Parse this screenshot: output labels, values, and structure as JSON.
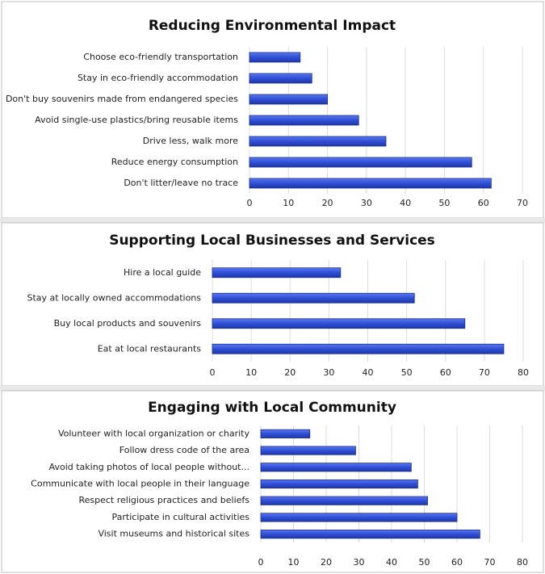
{
  "chart_data": [
    {
      "type": "barh",
      "title": "Reducing Environmental Impact",
      "categories": [
        "Choose eco-friendly transportation",
        "Stay in eco-friendly accommodation",
        "Don't buy souvenirs made from endangered species",
        "Avoid single-use plastics/bring reusable items",
        "Drive less, walk more",
        "Reduce energy consumption",
        "Don't litter/leave no trace"
      ],
      "values": [
        13,
        16,
        20,
        28,
        35,
        57,
        62
      ],
      "color": "#2f4fd6",
      "xlim": [
        0,
        70
      ],
      "xticks": [
        0,
        10,
        20,
        30,
        40,
        50,
        60,
        70
      ],
      "grid": true
    },
    {
      "type": "barh",
      "title": "Supporting Local Businesses and Services",
      "categories": [
        "Hire a local guide",
        "Stay at locally owned accommodations",
        "Buy local products and souvenirs",
        "Eat at local restaurants"
      ],
      "values": [
        33,
        52,
        65,
        75
      ],
      "color": "#2f4fd6",
      "xlim": [
        0,
        80
      ],
      "xticks": [
        0,
        10,
        20,
        30,
        40,
        50,
        60,
        70,
        80
      ],
      "grid": true
    },
    {
      "type": "barh",
      "title": "Engaging with Local Community",
      "categories": [
        "Volunteer with local organization or charity",
        "Follow dress code of the area",
        "Avoid taking photos of local people without...",
        "Communicate with local people in their language",
        "Respect religious practices and beliefs",
        "Participate in cultural activities",
        "Visit museums and historical sites"
      ],
      "values": [
        15,
        29,
        46,
        48,
        51,
        60,
        67
      ],
      "color": "#2f4fd6",
      "xlim": [
        0,
        80
      ],
      "xticks": [
        0,
        10,
        20,
        30,
        40,
        50,
        60,
        70,
        80
      ],
      "grid": true
    }
  ]
}
